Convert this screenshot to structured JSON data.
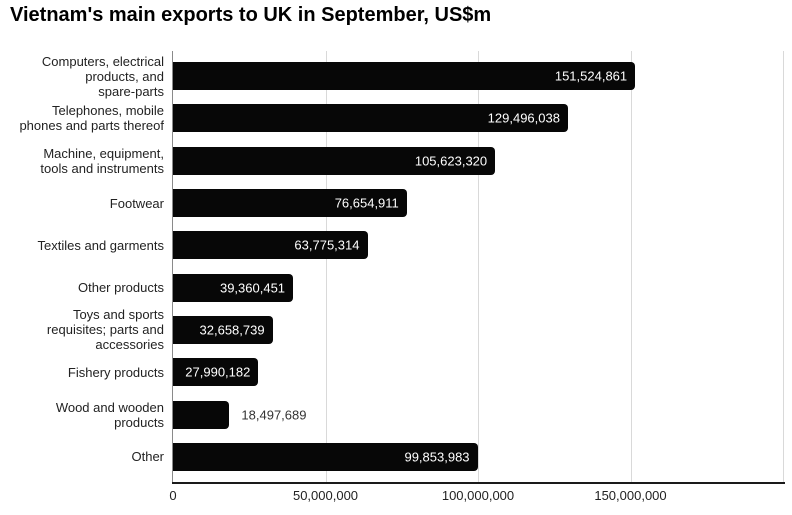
{
  "chart_data": {
    "type": "bar",
    "orientation": "horizontal",
    "title": "Vietnam's main exports to UK in September, US$m",
    "categories": [
      "Computers, electrical\nproducts, and\nspare-parts",
      "Telephones, mobile\nphones and parts thereof",
      "Machine, equipment,\ntools and instruments",
      "Footwear",
      "Textiles and garments",
      "Other products",
      "Toys and sports\nrequisites; parts and\naccessories",
      "Fishery products",
      "Wood and wooden\nproducts",
      "Other"
    ],
    "values": [
      151524861,
      129496038,
      105623320,
      76654911,
      63775314,
      39360451,
      32658739,
      27990182,
      18497689,
      99853983
    ],
    "value_labels": [
      "151,524,861",
      "129,496,038",
      "105,623,320",
      "76,654,911",
      "63,775,314",
      "39,360,451",
      "32,658,739",
      "27,990,182",
      "18,497,689",
      "99,853,983"
    ],
    "xlabel": "",
    "ylabel": "",
    "xlim": [
      0,
      200000000
    ],
    "grid": true,
    "legend": false,
    "x_ticks": [
      {
        "value": 0,
        "label": "0"
      },
      {
        "value": 50000000,
        "label": "50,000,000"
      },
      {
        "value": 100000000,
        "label": "100,000,000"
      },
      {
        "value": 150000000,
        "label": "150,000,000"
      }
    ],
    "gridline_values": [
      50000000,
      100000000,
      150000000,
      200000000
    ],
    "colors": {
      "bar": "#070707",
      "grid": "#d9d9d9",
      "y_axis": "#8a8a8a",
      "x_axis": "#1a1a1a",
      "value_label_inside": "#ffffff",
      "value_label_outside": "#333333",
      "category_label": "#222222",
      "tick_label": "#222222",
      "title": "#000000",
      "background": "#ffffff"
    }
  }
}
